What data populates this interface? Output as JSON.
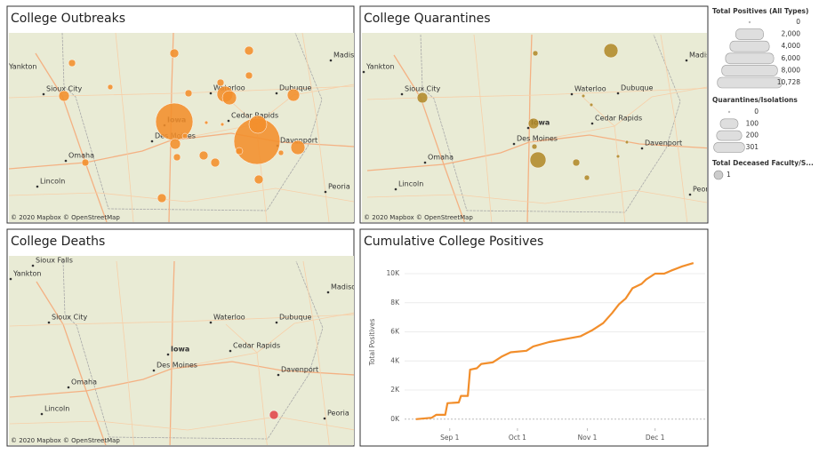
{
  "maps": [
    {
      "title": "College Outbreaks",
      "color": "#f28e2b",
      "cities": [
        "Yankton",
        "Sioux City",
        "Omaha",
        "Lincoln",
        "Des Moines",
        "Iowa",
        "Waterloo",
        "Cedar Rapids",
        "Dubuque",
        "Davenport",
        "Peoria",
        "Madiso"
      ],
      "values": [
        100,
        100,
        64,
        64,
        64,
        36,
        64,
        144,
        324,
        196,
        16,
        144,
        36,
        2704,
        1764,
        256,
        36,
        64,
        100,
        100,
        64,
        64,
        100,
        100,
        16,
        400,
        256
      ],
      "attribution": "© 2020 Mapbox © OpenStreetMap"
    },
    {
      "title": "College Quarantines",
      "color": "#b08a2a",
      "cities": [
        "Yankton",
        "Sioux City",
        "Omaha",
        "Lincoln",
        "Des Moines",
        "Iowa",
        "Waterloo",
        "Cedar Rapids",
        "Dubuque",
        "Davenport",
        "Peoria",
        "Madiso"
      ],
      "values": [
        212,
        30,
        119,
        119,
        13,
        13,
        30,
        268,
        53,
        30,
        13,
        13
      ],
      "attribution": "© 2020 Mapbox © OpenStreetMap"
    },
    {
      "title": "College Deaths",
      "color": "#e0464b",
      "cities": [
        "Sioux Falls",
        "Yankton",
        "Sioux City",
        "Waterloo",
        "Dubuque",
        "Iowa",
        "Cedar Rapids",
        "Des Moines",
        "Davenport",
        "Omaha",
        "Lincoln",
        "Peoria",
        "Madiso"
      ],
      "values": [
        1
      ],
      "attribution": "© 2020 Mapbox © OpenStreetMap"
    }
  ],
  "legend": [
    {
      "title": "Total Positives (All Types)",
      "items": [
        0,
        {
          "value": 2000,
          "label": "2,000"
        },
        {
          "value": 4000,
          "label": "4,000"
        },
        {
          "value": 6000,
          "label": "6,000"
        },
        {
          "value": 8000,
          "label": "8,000"
        },
        {
          "value": 10728,
          "label": "10,728"
        }
      ]
    },
    {
      "title": "Quarantines/Isolations",
      "items": [
        0,
        100,
        200,
        301
      ]
    },
    {
      "title": "Total Deceased Faculty/S...",
      "items": [
        1
      ]
    }
  ],
  "chart_data": {
    "type": "line",
    "title": "Cumulative College Positives",
    "ylabel": "Total Positives",
    "color": "#f28e2b",
    "x": [
      "Aug 17",
      "Aug 24",
      "Aug 26",
      "Aug 30",
      "Aug 31",
      "Sep 5",
      "Sep 6",
      "Sep 9",
      "Sep 10",
      "Sep 13",
      "Sep 15",
      "Sep 20",
      "Sep 24",
      "Sep 28",
      "Oct 5",
      "Oct 8",
      "Oct 15",
      "Oct 22",
      "Oct 29",
      "Nov 3",
      "Nov 8",
      "Nov 12",
      "Nov 15",
      "Nov 18",
      "Nov 21",
      "Nov 25",
      "Nov 27",
      "Dec 1",
      "Dec 5",
      "Dec 8",
      "Dec 13",
      "Dec 18"
    ],
    "values": [
      0,
      100,
      300,
      300,
      1100,
      1150,
      1600,
      1600,
      3400,
      3500,
      3800,
      3900,
      4300,
      4600,
      4700,
      5000,
      5300,
      5500,
      5700,
      6100,
      6600,
      7300,
      7900,
      8300,
      9000,
      9300,
      9600,
      10000,
      10000,
      10200,
      10500,
      10728
    ],
    "xlim": [
      "Aug 12",
      "Dec 22"
    ],
    "xticks": [
      "Sep 1",
      "Oct 1",
      "Nov 1",
      "Dec 1"
    ],
    "ylim": [
      -500,
      11100
    ],
    "yticks": [
      {
        "value": 0,
        "label": "0K"
      },
      {
        "value": 2000,
        "label": "2K"
      },
      {
        "value": 4000,
        "label": "4K"
      },
      {
        "value": 6000,
        "label": "6K"
      },
      {
        "value": 8000,
        "label": "8K"
      },
      {
        "value": 10000,
        "label": "10K"
      }
    ],
    "grid": true
  }
}
